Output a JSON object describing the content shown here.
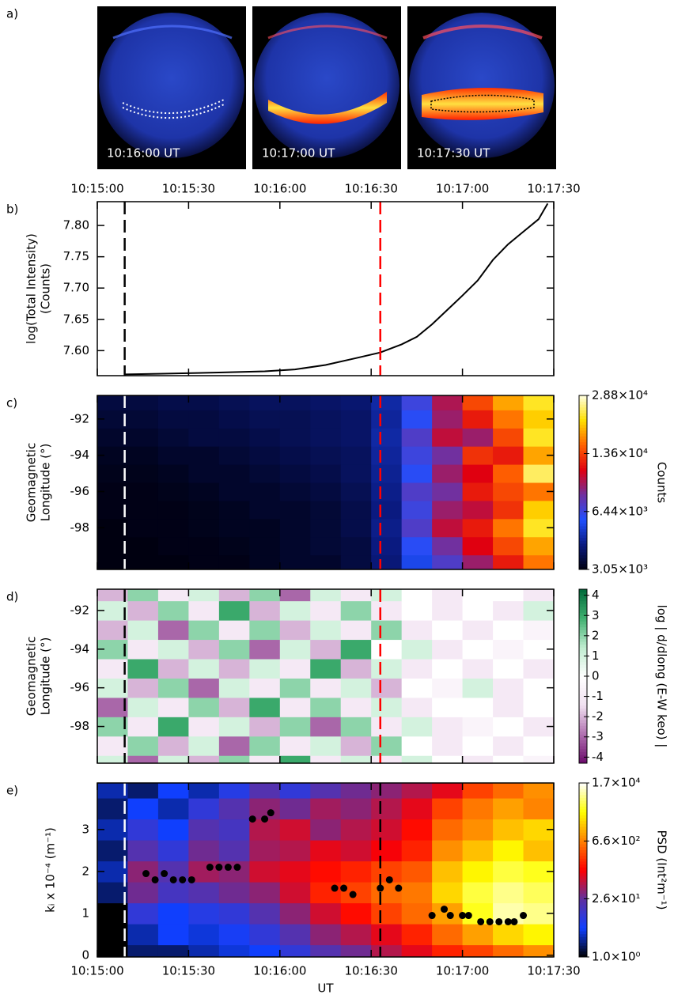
{
  "images": {
    "panel_label": "a)",
    "timestamps": [
      "10:16:00 UT",
      "10:17:00 UT",
      "10:17:30 UT"
    ]
  },
  "chart_data": [
    {
      "type": "line",
      "panel_label": "b)",
      "ylabel": [
        "log(Total Intensity)",
        "(Counts)"
      ],
      "x": [
        "10:15:09",
        "10:15:20",
        "10:15:40",
        "10:15:55",
        "10:16:05",
        "10:16:15",
        "10:16:25",
        "10:16:33",
        "10:16:40",
        "10:16:45",
        "10:16:50",
        "10:16:55",
        "10:17:00",
        "10:17:05",
        "10:17:10",
        "10:17:15",
        "10:17:20",
        "10:17:25",
        "10:17:28"
      ],
      "values": [
        7.562,
        7.563,
        7.565,
        7.567,
        7.57,
        7.577,
        7.588,
        7.597,
        7.61,
        7.622,
        7.642,
        7.665,
        7.688,
        7.712,
        7.745,
        7.77,
        7.79,
        7.81,
        7.835
      ],
      "color": "#000000",
      "xlim": [
        "10:15:00",
        "10:17:30"
      ],
      "xticks": [
        "10:15:00",
        "10:15:30",
        "10:16:00",
        "10:16:30",
        "10:17:00",
        "10:17:30"
      ],
      "xaxis_labels": "top",
      "ylim": [
        7.56,
        7.838
      ],
      "yticks": [
        {
          "value": 7.6,
          "label": "7.60"
        },
        {
          "value": 7.65,
          "label": "7.65"
        },
        {
          "value": 7.7,
          "label": "7.70"
        },
        {
          "value": 7.75,
          "label": "7.75"
        },
        {
          "value": 7.8,
          "label": "7.80"
        }
      ],
      "markers": [
        {
          "x": "10:15:09",
          "color": "#000000"
        },
        {
          "x": "10:16:33",
          "color": "#ff0000"
        }
      ]
    },
    {
      "type": "heatmap",
      "panel_label": "c)",
      "ylabel": [
        "Geomagnetic",
        "Longitude (°)"
      ],
      "xlim": [
        "10:15:00",
        "10:17:30"
      ],
      "xticks": [
        "10:15:00",
        "10:15:30",
        "10:16:00",
        "10:16:30",
        "10:17:00",
        "10:17:30"
      ],
      "xaxis_labels": "none",
      "ylim": [
        -100.3,
        -90.7
      ],
      "yticks": [
        -92,
        -94,
        -96,
        -98
      ],
      "xbins": [
        "10:15:00",
        "10:15:10",
        "10:15:20",
        "10:15:30",
        "10:15:40",
        "10:15:50",
        "10:16:00",
        "10:16:10",
        "10:16:20",
        "10:16:30",
        "10:16:40",
        "10:16:50",
        "10:17:00",
        "10:17:10",
        "10:17:20",
        "10:17:30"
      ],
      "ybins": [
        -100.5,
        -99.5,
        -98.5,
        -97.5,
        -96.5,
        -95.5,
        -94.5,
        -93.5,
        -92.5,
        -91.5,
        -90.5
      ],
      "z": [
        [
          3050,
          3050,
          3050,
          3100,
          3100,
          3200,
          3300,
          3300,
          3500,
          4100,
          5500,
          7000,
          9000,
          12000,
          16000
        ],
        [
          3050,
          3050,
          3100,
          3100,
          3150,
          3200,
          3300,
          3400,
          3500,
          4200,
          6000,
          8000,
          11000,
          14000,
          18000
        ],
        [
          3050,
          3100,
          3100,
          3150,
          3200,
          3200,
          3300,
          3400,
          3600,
          4300,
          7000,
          10000,
          12000,
          16000,
          22000
        ],
        [
          3100,
          3100,
          3100,
          3150,
          3200,
          3300,
          3300,
          3400,
          3600,
          4200,
          6500,
          9000,
          10000,
          13000,
          20000
        ],
        [
          3100,
          3100,
          3150,
          3200,
          3300,
          3300,
          3400,
          3500,
          3700,
          4300,
          7000,
          8000,
          12000,
          14000,
          16000
        ],
        [
          3150,
          3150,
          3200,
          3300,
          3300,
          3400,
          3500,
          3600,
          3800,
          4400,
          6000,
          9000,
          11000,
          15000,
          24000
        ],
        [
          3200,
          3200,
          3300,
          3300,
          3400,
          3500,
          3600,
          3700,
          3800,
          4500,
          6500,
          8000,
          13000,
          12000,
          18000
        ],
        [
          3300,
          3300,
          3400,
          3500,
          3500,
          3600,
          3700,
          3800,
          3900,
          4600,
          7000,
          10000,
          9000,
          14000,
          22000
        ],
        [
          3400,
          3400,
          3500,
          3500,
          3600,
          3700,
          3700,
          3800,
          3900,
          4500,
          6000,
          9000,
          12000,
          16000,
          20000
        ],
        [
          3500,
          3500,
          3600,
          3600,
          3700,
          3800,
          3800,
          3900,
          4000,
          4600,
          6500,
          9500,
          14000,
          18000,
          22000
        ]
      ],
      "colormap": [
        "#000010",
        "#0a1a80",
        "#2050ff",
        "#7030a0",
        "#e00010",
        "#ff6000",
        "#ffe000",
        "#ffffe0"
      ],
      "clog": true,
      "clim": [
        3050,
        28800
      ],
      "cticks": [
        {
          "value": 3050,
          "label": "3.05×10³"
        },
        {
          "value": 6440,
          "label": "6.44×10³"
        },
        {
          "value": 13600,
          "label": "1.36×10⁴"
        },
        {
          "value": 28800,
          "label": "2.88×10⁴"
        }
      ],
      "clabel": "Counts",
      "markers": [
        {
          "x": "10:15:09",
          "color": "#ffffff"
        },
        {
          "x": "10:16:33",
          "color": "#ff0000"
        }
      ]
    },
    {
      "type": "heatmap",
      "panel_label": "d)",
      "ylabel": [
        "Geomagnetic",
        "Longitude (°)"
      ],
      "xlim": [
        "10:15:00",
        "10:17:30"
      ],
      "xticks": [
        "10:15:00",
        "10:15:30",
        "10:16:00",
        "10:16:30",
        "10:17:00",
        "10:17:30"
      ],
      "xaxis_labels": "none",
      "ylim": [
        -99.9,
        -90.9
      ],
      "yticks": [
        -92,
        -94,
        -96,
        -98
      ],
      "xbins": [
        "10:15:00",
        "10:15:10",
        "10:15:20",
        "10:15:30",
        "10:15:40",
        "10:15:50",
        "10:16:00",
        "10:16:10",
        "10:16:20",
        "10:16:30",
        "10:16:40",
        "10:16:50",
        "10:17:00",
        "10:17:10",
        "10:17:20",
        "10:17:30"
      ],
      "ybins": [
        -100.5,
        -99.5,
        -98.5,
        -97.5,
        -96.5,
        -95.5,
        -94.5,
        -93.5,
        -92.5,
        -91.5,
        -90.5
      ],
      "z": [
        [
          1,
          -3,
          1,
          -2,
          2,
          -1,
          3,
          -1,
          1,
          -1,
          1,
          0,
          -1,
          0,
          -0.5
        ],
        [
          -1,
          2,
          -2,
          1,
          -3,
          2,
          -1,
          1,
          -2,
          2,
          0,
          -1,
          0,
          -1,
          0
        ],
        [
          2,
          -1,
          3,
          -1,
          1,
          -2,
          2,
          -3,
          2,
          -1,
          1,
          -1,
          -0.5,
          0,
          -1
        ],
        [
          -3,
          1,
          -1,
          2,
          -2,
          3,
          -1,
          2,
          -1,
          1,
          -1,
          0,
          0,
          -1,
          0
        ],
        [
          1,
          -2,
          2,
          -3,
          1,
          -1,
          2,
          -1,
          1,
          -2,
          0,
          -0.5,
          1,
          -1,
          0
        ],
        [
          -1,
          3,
          -2,
          1,
          -2,
          1,
          -1,
          3,
          -2,
          1,
          -1,
          0,
          -1,
          0,
          -1
        ],
        [
          2,
          -1,
          1,
          -2,
          2,
          -3,
          1,
          -2,
          3,
          0,
          1,
          -1,
          0,
          -0.5,
          0
        ],
        [
          -2,
          1,
          -3,
          2,
          -1,
          2,
          -2,
          1,
          -1,
          2,
          -1,
          0,
          -1,
          0,
          -0.5
        ],
        [
          1,
          -2,
          2,
          -1,
          3,
          -2,
          1,
          -1,
          2,
          -1,
          0,
          -1,
          0,
          -1,
          1
        ],
        [
          -2,
          2,
          -1,
          1,
          -2,
          2,
          -3,
          1,
          -1,
          1,
          0,
          -1,
          0,
          0,
          -1
        ]
      ],
      "colormap": [
        "#6a0a6a",
        "#b070b0",
        "#f0e0f0",
        "#ffffff",
        "#c0ecd0",
        "#40b070",
        "#006a3a"
      ],
      "clog": false,
      "clim": [
        -4.3,
        4.3
      ],
      "cticks": [
        -4,
        -3,
        -2,
        -1,
        0,
        1,
        2,
        3,
        4
      ],
      "clabel": "log | d/dlong (E-W keo) |",
      "markers": [
        {
          "x": "10:15:09",
          "color": "#000000"
        },
        {
          "x": "10:16:33",
          "color": "#ff0000"
        }
      ]
    },
    {
      "type": "heatmap",
      "panel_label": "e)",
      "ylabel": [
        "kᵢ x 10⁻⁴ (m⁻¹)"
      ],
      "xlabel": "UT",
      "xlim": [
        "10:15:00",
        "10:17:30"
      ],
      "xticks": [
        "10:15:00",
        "10:15:30",
        "10:16:00",
        "10:16:30",
        "10:17:00",
        "10:17:30"
      ],
      "xaxis_labels": "bottom",
      "ylim": [
        -0.04,
        4.11
      ],
      "yticks": [
        0,
        1,
        2,
        3
      ],
      "xbins": [
        "10:15:00",
        "10:15:10",
        "10:15:20",
        "10:15:30",
        "10:15:40",
        "10:15:50",
        "10:16:00",
        "10:16:10",
        "10:16:20",
        "10:16:30",
        "10:16:40",
        "10:16:50",
        "10:17:00",
        "10:17:10",
        "10:17:20",
        "10:17:30"
      ],
      "ybins": [
        -0.25,
        0.25,
        0.75,
        1.25,
        1.75,
        2.25,
        2.75,
        3.25,
        3.75,
        4.25
      ],
      "z": [
        [
          1,
          2,
          2,
          3,
          4,
          5,
          10,
          20,
          30,
          60,
          100,
          200,
          300,
          500,
          800
        ],
        [
          1,
          3,
          5,
          4,
          6,
          10,
          20,
          40,
          60,
          100,
          200,
          500,
          1000,
          2000,
          3000
        ],
        [
          1,
          10,
          5,
          8,
          10,
          20,
          40,
          80,
          150,
          300,
          500,
          1000,
          4000,
          10000,
          8000
        ],
        [
          2,
          30,
          15,
          20,
          30,
          40,
          80,
          200,
          300,
          500,
          600,
          2000,
          5000,
          8000,
          6000
        ],
        [
          3,
          40,
          20,
          50,
          40,
          80,
          100,
          150,
          200,
          300,
          400,
          1500,
          3000,
          5000,
          4000
        ],
        [
          2,
          20,
          10,
          30,
          20,
          50,
          60,
          100,
          80,
          120,
          200,
          800,
          1500,
          3000,
          1500
        ],
        [
          3,
          10,
          5,
          20,
          15,
          60,
          80,
          40,
          60,
          80,
          150,
          500,
          800,
          1500,
          2000
        ],
        [
          2,
          5,
          3,
          10,
          20,
          40,
          30,
          50,
          40,
          60,
          100,
          300,
          600,
          1000,
          700
        ],
        [
          3,
          2,
          5,
          3,
          8,
          20,
          10,
          20,
          30,
          40,
          60,
          100,
          300,
          500,
          800
        ]
      ],
      "colormap": [
        "#000000",
        "#1040ff",
        "#6030a0",
        "#ff0000",
        "#ff8000",
        "#ffff00",
        "#ffffff"
      ],
      "clog": true,
      "clim": [
        1,
        17000
      ],
      "cticks": [
        {
          "value": 1,
          "label": "1.0×10⁰"
        },
        {
          "value": 26,
          "label": "2.6×10¹"
        },
        {
          "value": 660,
          "label": "6.6×10²"
        },
        {
          "value": 17000,
          "label": "1.7×10⁴"
        }
      ],
      "clabel": "PSD (Int²m⁻¹)",
      "points": {
        "color": "#000000",
        "x": [
          "10:15:16",
          "10:15:19",
          "10:15:22",
          "10:15:25",
          "10:15:28",
          "10:15:31",
          "10:15:37",
          "10:15:40",
          "10:15:43",
          "10:15:46",
          "10:15:51",
          "10:15:55",
          "10:15:57",
          "10:16:18",
          "10:16:21",
          "10:16:24",
          "10:16:33",
          "10:16:36",
          "10:16:39",
          "10:16:50",
          "10:16:54",
          "10:16:56",
          "10:17:00",
          "10:17:02",
          "10:17:06",
          "10:17:09",
          "10:17:12",
          "10:17:15",
          "10:17:17",
          "10:17:20"
        ],
        "y": [
          1.95,
          1.8,
          1.95,
          1.8,
          1.8,
          1.8,
          2.1,
          2.1,
          2.1,
          2.1,
          3.25,
          3.25,
          3.4,
          1.6,
          1.6,
          1.45,
          1.6,
          1.8,
          1.6,
          0.95,
          1.1,
          0.95,
          0.95,
          0.95,
          0.8,
          0.8,
          0.8,
          0.8,
          0.8,
          0.95
        ]
      },
      "markers": [
        {
          "x": "10:15:09",
          "color": "#ffffff"
        },
        {
          "x": "10:16:33",
          "color": "#000000"
        }
      ]
    }
  ]
}
